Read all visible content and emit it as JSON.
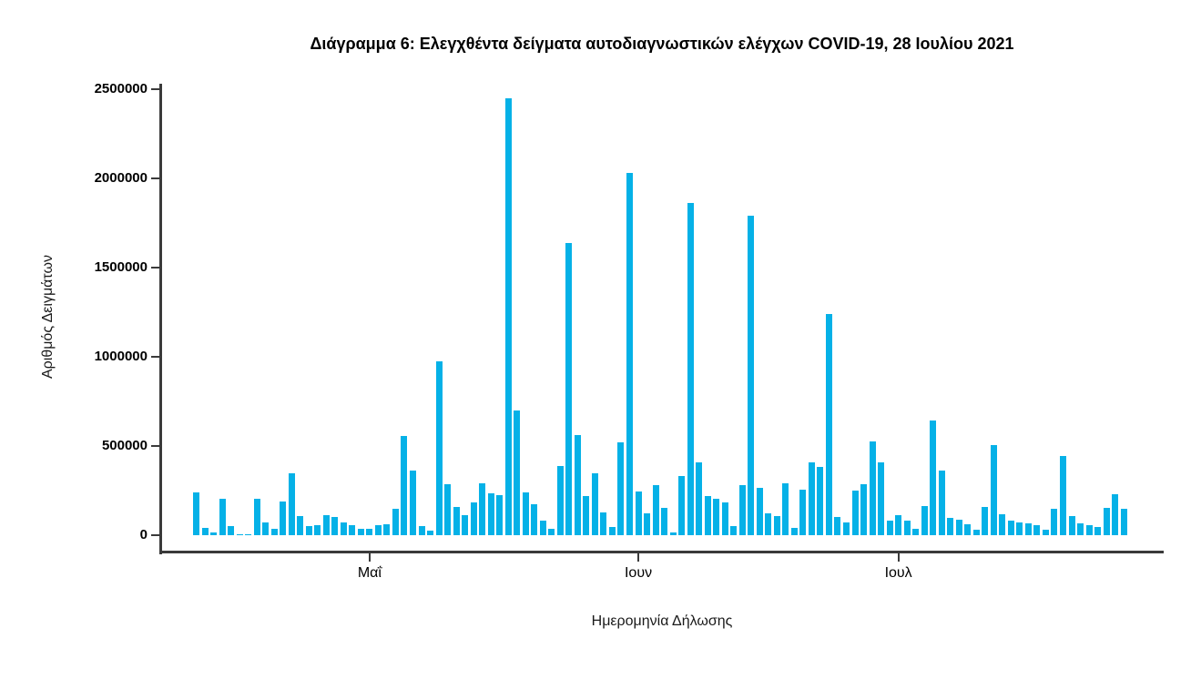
{
  "page": {
    "background": "#ffffff"
  },
  "chart_data": {
    "type": "bar",
    "title": "Διάγραμμα 6: Ελεγχθέντα δείγματα αυτοδιαγνωστικών ελέγχων COVID-19, 28 Ιουλίου 2021",
    "xlabel": "Ημερομηνία Δήλωσης",
    "ylabel": "Αριθμός Δειγμάτων",
    "legend": null,
    "grid": false,
    "bar_color": "#05b1e7",
    "axis_color": "#3a3a3a",
    "text_color": "#000000",
    "ylim": [
      0,
      2500000
    ],
    "yticks": [
      0,
      500000,
      1000000,
      1500000,
      2000000,
      2500000
    ],
    "x_frequency": "daily",
    "x_range_estimate": [
      "2021-04-11",
      "2021-07-27"
    ],
    "month_ticks": [
      {
        "label": "Μαΐ",
        "bar_index": 20
      },
      {
        "label": "Ιουν",
        "bar_index": 51
      },
      {
        "label": "Ιουλ",
        "bar_index": 81
      }
    ],
    "values": [
      240000,
      39000,
      14000,
      202000,
      53000,
      5000,
      4000,
      206000,
      71000,
      37000,
      189000,
      349000,
      107000,
      53000,
      56000,
      110000,
      100000,
      71000,
      58000,
      37000,
      37000,
      54000,
      63000,
      150000,
      555000,
      360000,
      50000,
      28000,
      975000,
      285000,
      158000,
      112000,
      185000,
      291000,
      236000,
      227000,
      2450000,
      700000,
      241000,
      173000,
      82000,
      37000,
      390000,
      1640000,
      560000,
      220000,
      345000,
      130000,
      48000,
      520000,
      2030000,
      246000,
      120000,
      282000,
      151000,
      15000,
      330000,
      1860000,
      410000,
      221000,
      204000,
      182000,
      53000,
      280000,
      1790000,
      264000,
      121000,
      109000,
      291000,
      42000,
      257000,
      410000,
      381000,
      1240000,
      100000,
      70000,
      248000,
      286000,
      525000,
      406000,
      83000,
      110000,
      83000,
      37000,
      163000,
      645000,
      362000,
      97000,
      87000,
      61000,
      32000,
      160000,
      505000,
      116000,
      82000,
      70000,
      65000,
      58000,
      32000,
      146000,
      444000,
      107000,
      68000,
      55000,
      45000,
      153000,
      228000,
      146000
    ]
  }
}
